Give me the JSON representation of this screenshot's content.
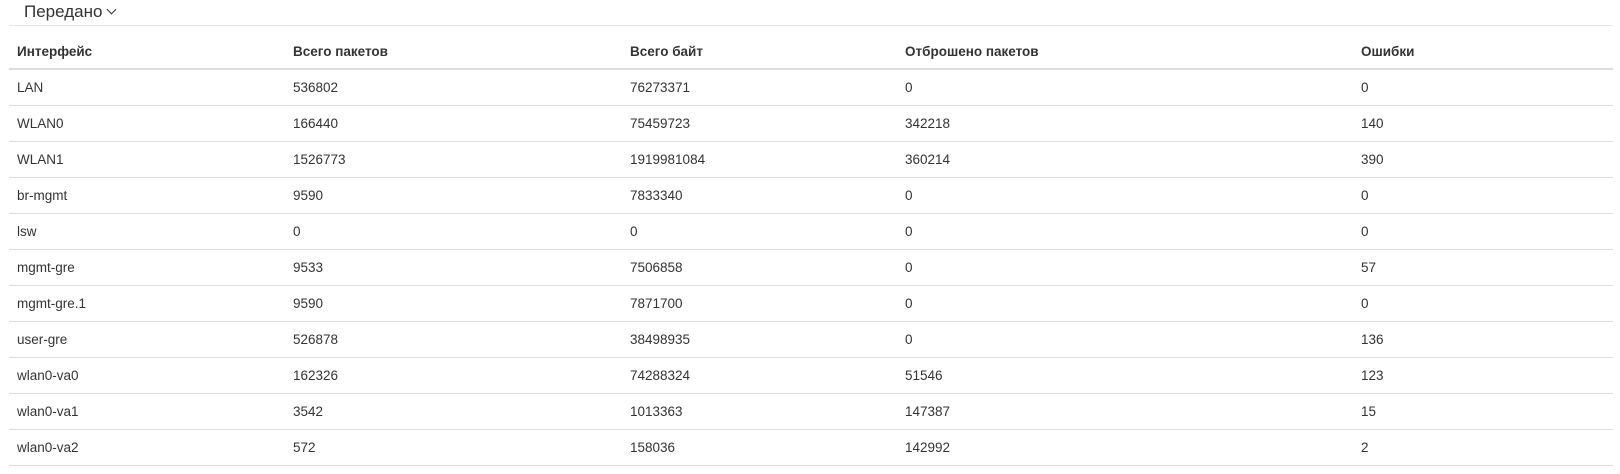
{
  "section": {
    "title": "Передано",
    "icon": "chevron-down-icon"
  },
  "table": {
    "columns": [
      "Интерфейс",
      "Всего пакетов",
      "Всего байт",
      "Отброшено пакетов",
      "Ошибки"
    ],
    "rows": [
      [
        "LAN",
        "536802",
        "76273371",
        "0",
        "0"
      ],
      [
        "WLAN0",
        "166440",
        "75459723",
        "342218",
        "140"
      ],
      [
        "WLAN1",
        "1526773",
        "1919981084",
        "360214",
        "390"
      ],
      [
        "br-mgmt",
        "9590",
        "7833340",
        "0",
        "0"
      ],
      [
        "lsw",
        "0",
        "0",
        "0",
        "0"
      ],
      [
        "mgmt-gre",
        "9533",
        "7506858",
        "0",
        "57"
      ],
      [
        "mgmt-gre.1",
        "9590",
        "7871700",
        "0",
        "0"
      ],
      [
        "user-gre",
        "526878",
        "38498935",
        "0",
        "136"
      ],
      [
        "wlan0-va0",
        "162326",
        "74288324",
        "51546",
        "123"
      ],
      [
        "wlan0-va1",
        "3542",
        "1013363",
        "147387",
        "15"
      ],
      [
        "wlan0-va2",
        "572",
        "158036",
        "142992",
        "2"
      ]
    ]
  }
}
